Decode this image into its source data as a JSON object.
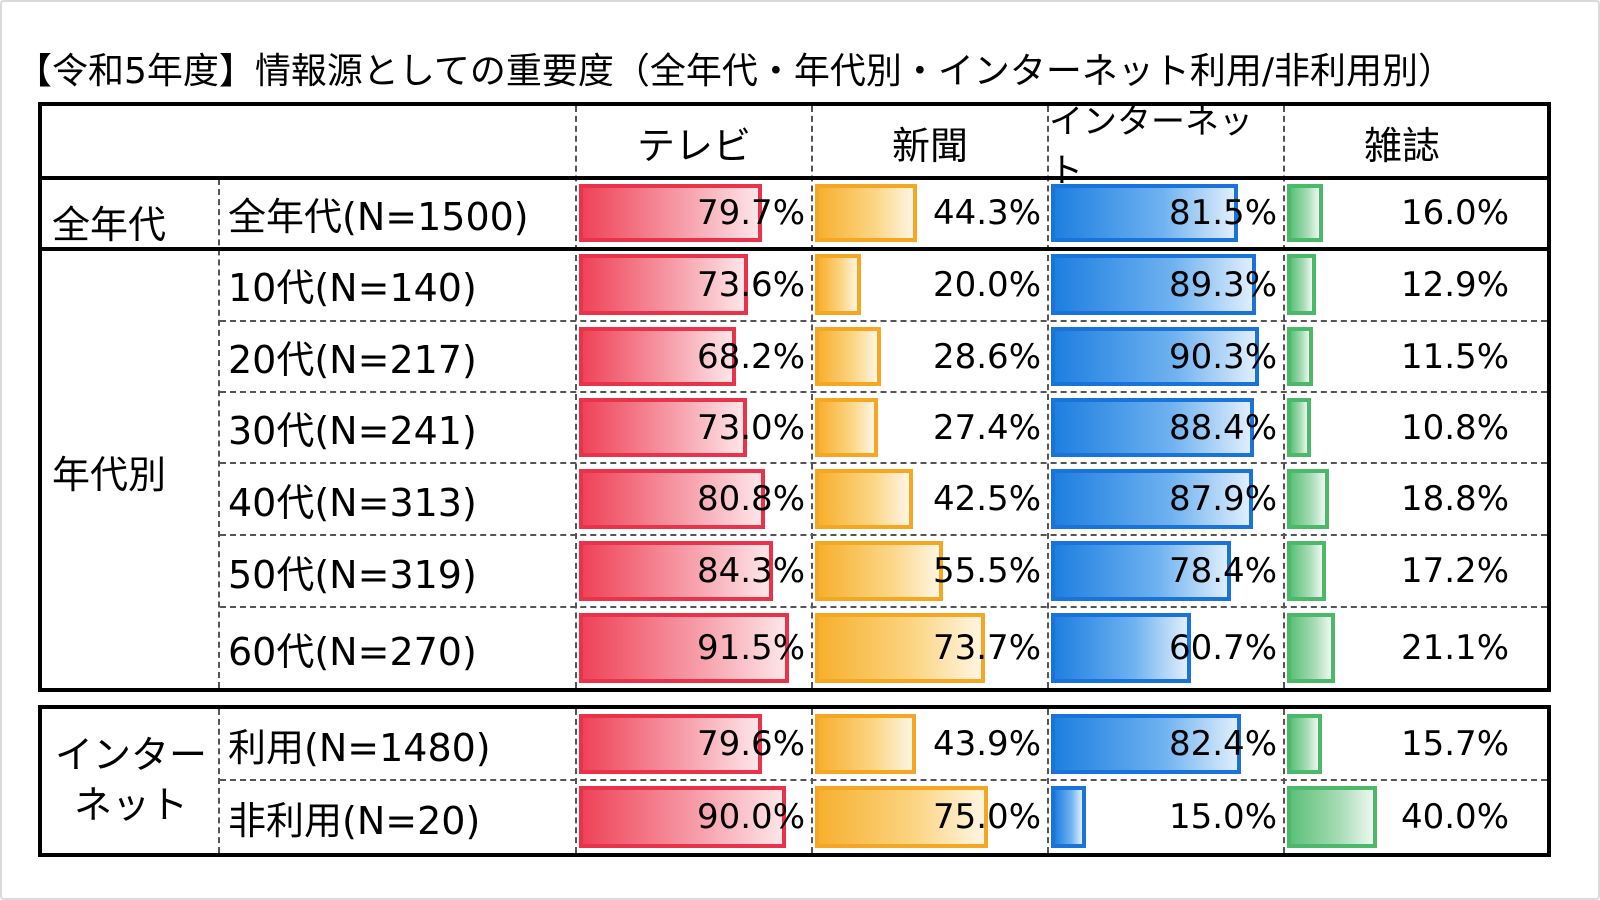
{
  "title": "【令和5年度】情報源としての重要度（全年代・年代別・インターネット利用/非利用別）",
  "columns": [
    "テレビ",
    "新聞",
    "インターネット",
    "雑誌"
  ],
  "groups": {
    "all": "全年代",
    "age": "年代別",
    "net_line1": "インター",
    "net_line2": "ネット"
  },
  "rows": [
    {
      "label": "全年代(N=1500)",
      "values": [
        "79.7%",
        "44.3%",
        "81.5%",
        "16.0%"
      ]
    },
    {
      "label": "10代(N=140)",
      "values": [
        "73.6%",
        "20.0%",
        "89.3%",
        "12.9%"
      ]
    },
    {
      "label": "20代(N=217)",
      "values": [
        "68.2%",
        "28.6%",
        "90.3%",
        "11.5%"
      ]
    },
    {
      "label": "30代(N=241)",
      "values": [
        "73.0%",
        "27.4%",
        "88.4%",
        "10.8%"
      ]
    },
    {
      "label": "40代(N=313)",
      "values": [
        "80.8%",
        "42.5%",
        "87.9%",
        "18.8%"
      ]
    },
    {
      "label": "50代(N=319)",
      "values": [
        "84.3%",
        "55.5%",
        "78.4%",
        "17.2%"
      ]
    },
    {
      "label": "60代(N=270)",
      "values": [
        "91.5%",
        "73.7%",
        "60.7%",
        "21.1%"
      ]
    },
    {
      "label": "利用(N=1480)",
      "values": [
        "79.6%",
        "43.9%",
        "82.4%",
        "15.7%"
      ]
    },
    {
      "label": "非利用(N=20)",
      "values": [
        "90.0%",
        "75.0%",
        "15.0%",
        "40.0%"
      ]
    }
  ],
  "colors": {
    "tv": "#e8334a",
    "newspaper": "#f5a623",
    "internet": "#1a73d9",
    "magazine": "#4cb86a"
  },
  "chart_data": {
    "type": "bar",
    "title": "【令和5年度】情報源としての重要度（全年代・年代別・インターネット利用/非利用別）",
    "categories": [
      "全年代(N=1500)",
      "10代(N=140)",
      "20代(N=217)",
      "30代(N=241)",
      "40代(N=313)",
      "50代(N=319)",
      "60代(N=270)",
      "利用(N=1480)",
      "非利用(N=20)"
    ],
    "series": [
      {
        "name": "テレビ",
        "values": [
          79.7,
          73.6,
          68.2,
          73.0,
          80.8,
          84.3,
          91.5,
          79.6,
          90.0
        ]
      },
      {
        "name": "新聞",
        "values": [
          44.3,
          20.0,
          28.6,
          27.4,
          42.5,
          55.5,
          73.7,
          43.9,
          75.0
        ]
      },
      {
        "name": "インターネット",
        "values": [
          81.5,
          89.3,
          90.3,
          88.4,
          87.9,
          78.4,
          60.7,
          82.4,
          15.0
        ]
      },
      {
        "name": "雑誌",
        "values": [
          16.0,
          12.9,
          11.5,
          10.8,
          18.8,
          17.2,
          21.1,
          15.7,
          40.0
        ]
      }
    ],
    "ylim": [
      0,
      100
    ]
  }
}
